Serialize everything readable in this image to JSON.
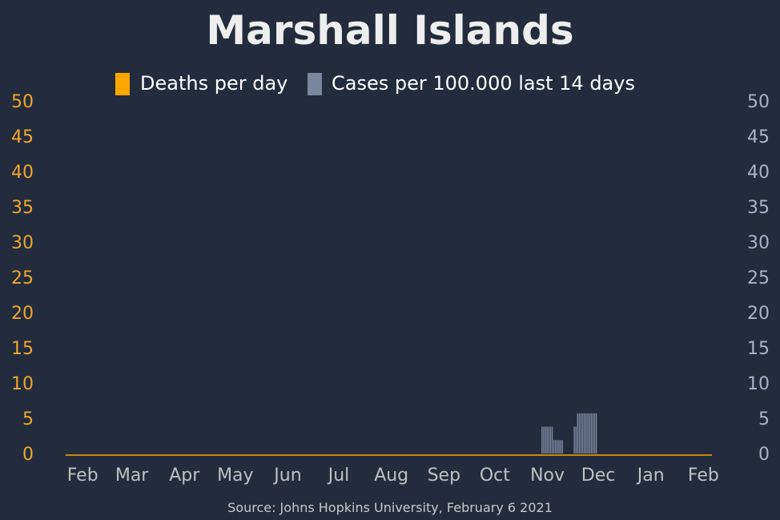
{
  "chart_data": {
    "type": "bar",
    "title": "Marshall Islands",
    "source": "Source: Johns Hopkins University, February 6 2021",
    "legend": {
      "placement": "top-center",
      "entries": [
        {
          "name": "Deaths per day",
          "color": "#ffa500"
        },
        {
          "name": "Cases per 100.000 last 14 days",
          "color": "#7a879f"
        }
      ]
    },
    "y_left": {
      "range": [
        0,
        50
      ],
      "ticks": [
        "0",
        "5",
        "10",
        "15",
        "20",
        "25",
        "30",
        "35",
        "40",
        "45",
        "50"
      ],
      "color": "#f0a530"
    },
    "y_right": {
      "range": [
        0,
        50
      ],
      "ticks": [
        "0",
        "5",
        "10",
        "15",
        "20",
        "25",
        "30",
        "35",
        "40",
        "45",
        "50"
      ],
      "color": "#a8b4cc"
    },
    "x_axis": {
      "range": [
        "2020-01-22",
        "2021-02-06"
      ],
      "ticks": [
        {
          "label": "Feb",
          "date": "2020-02-01"
        },
        {
          "label": "Mar",
          "date": "2020-03-01"
        },
        {
          "label": "Apr",
          "date": "2020-04-01"
        },
        {
          "label": "May",
          "date": "2020-05-01"
        },
        {
          "label": "Jun",
          "date": "2020-06-01"
        },
        {
          "label": "Jul",
          "date": "2020-07-01"
        },
        {
          "label": "Aug",
          "date": "2020-08-01"
        },
        {
          "label": "Sep",
          "date": "2020-09-01"
        },
        {
          "label": "Oct",
          "date": "2020-10-01"
        },
        {
          "label": "Nov",
          "date": "2020-11-01"
        },
        {
          "label": "Dec",
          "date": "2020-12-01"
        },
        {
          "label": "Jan",
          "date": "2021-01-01"
        },
        {
          "label": "Feb",
          "date": "2021-02-01"
        }
      ]
    },
    "grid": false,
    "series": [
      {
        "name": "Cases per 100.000 last 14 days",
        "axis": "right",
        "color": "#7a879f",
        "points": [
          {
            "date": "2020-10-29",
            "value": 3.8
          },
          {
            "date": "2020-10-30",
            "value": 3.8
          },
          {
            "date": "2020-10-31",
            "value": 3.8
          },
          {
            "date": "2020-11-01",
            "value": 3.8
          },
          {
            "date": "2020-11-02",
            "value": 3.8
          },
          {
            "date": "2020-11-03",
            "value": 3.8
          },
          {
            "date": "2020-11-04",
            "value": 3.8
          },
          {
            "date": "2020-11-05",
            "value": 1.9
          },
          {
            "date": "2020-11-06",
            "value": 1.9
          },
          {
            "date": "2020-11-07",
            "value": 1.9
          },
          {
            "date": "2020-11-08",
            "value": 1.9
          },
          {
            "date": "2020-11-09",
            "value": 1.9
          },
          {
            "date": "2020-11-10",
            "value": 1.9
          },
          {
            "date": "2020-11-17",
            "value": 3.8
          },
          {
            "date": "2020-11-18",
            "value": 3.8
          },
          {
            "date": "2020-11-19",
            "value": 5.7
          },
          {
            "date": "2020-11-20",
            "value": 5.7
          },
          {
            "date": "2020-11-21",
            "value": 5.7
          },
          {
            "date": "2020-11-22",
            "value": 5.7
          },
          {
            "date": "2020-11-23",
            "value": 5.7
          },
          {
            "date": "2020-11-24",
            "value": 5.7
          },
          {
            "date": "2020-11-25",
            "value": 5.7
          },
          {
            "date": "2020-11-26",
            "value": 5.7
          },
          {
            "date": "2020-11-27",
            "value": 5.7
          },
          {
            "date": "2020-11-28",
            "value": 5.7
          },
          {
            "date": "2020-11-29",
            "value": 5.7
          },
          {
            "date": "2020-11-30",
            "value": 5.7
          }
        ]
      },
      {
        "name": "Deaths per day",
        "axis": "left",
        "color": "#ffa500",
        "points": []
      }
    ]
  }
}
